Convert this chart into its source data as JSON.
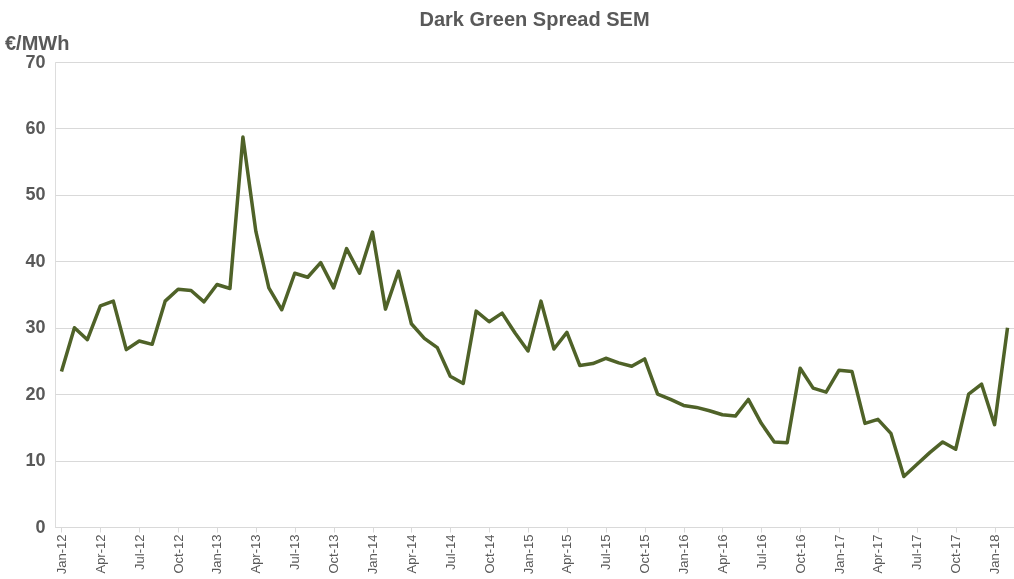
{
  "chart_data": {
    "type": "line",
    "title": "Dark Green Spread SEM",
    "ylabel": "€/MWh",
    "categories": [
      "Jan-12",
      null,
      null,
      "Apr-12",
      null,
      null,
      "Jul-12",
      null,
      null,
      "Oct-12",
      null,
      null,
      "Jan-13",
      null,
      null,
      "Apr-13",
      null,
      null,
      "Jul-13",
      null,
      null,
      "Oct-13",
      null,
      null,
      "Jan-14",
      null,
      null,
      "Apr-14",
      null,
      null,
      "Jul-14",
      null,
      null,
      "Oct-14",
      null,
      null,
      "Jan-15",
      null,
      null,
      "Apr-15",
      null,
      null,
      "Jul-15",
      null,
      null,
      "Oct-15",
      null,
      null,
      "Jan-16",
      null,
      null,
      "Apr-16",
      null,
      null,
      "Jul-16",
      null,
      null,
      "Oct-16",
      null,
      null,
      "Jan-17",
      null,
      null,
      "Apr-17",
      null,
      null,
      "Jul-17",
      null,
      null,
      "Oct-17",
      null,
      null,
      "Jan-18",
      null
    ],
    "series": [
      {
        "color": "#4f6228",
        "values": [
          23.4,
          30,
          28.2,
          33.3,
          34,
          26.7,
          28,
          27.5,
          34,
          35.8,
          35.6,
          33.9,
          36.5,
          35.9,
          58.7,
          44.5,
          36,
          32.7,
          38.2,
          37.6,
          39.8,
          36,
          41.9,
          38.2,
          44.4,
          32.8,
          38.5,
          30.6,
          28.4,
          27,
          22.7,
          21.6,
          32.5,
          30.9,
          32.2,
          29.2,
          26.5,
          34,
          26.8,
          29.3,
          24.3,
          24.6,
          25.4,
          24.7,
          24.2,
          25.3,
          20,
          19.2,
          18.3,
          18,
          17.5,
          16.9,
          16.7,
          19.2,
          15.6,
          12.8,
          12.7,
          23.9,
          20.9,
          20.3,
          23.6,
          23.4,
          15.6,
          16.2,
          14.1,
          7.6,
          9.4,
          11.2,
          12.8,
          11.7,
          20,
          21.5,
          15.4,
          30
        ]
      }
    ],
    "ylim": [
      0,
      70
    ],
    "yticks": [
      0,
      10,
      20,
      30,
      40,
      50,
      60,
      70
    ],
    "grid": "y",
    "marker": "none",
    "line_style": "solid"
  }
}
